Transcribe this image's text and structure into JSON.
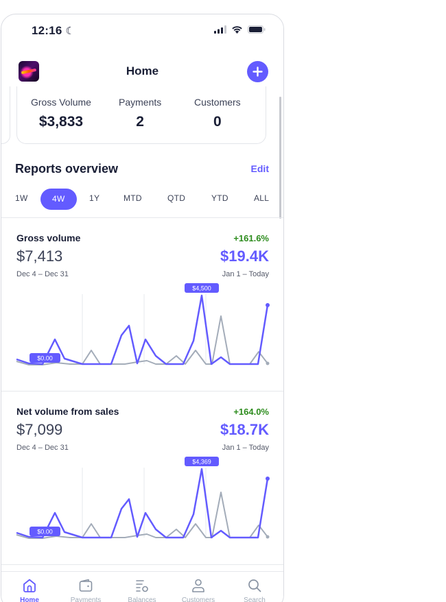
{
  "status_bar": {
    "time": "12:16"
  },
  "header": {
    "title": "Home"
  },
  "summary": [
    {
      "label": "Gross Volume",
      "value": "$3,833"
    },
    {
      "label": "Payments",
      "value": "2"
    },
    {
      "label": "Customers",
      "value": "0"
    }
  ],
  "reports": {
    "title": "Reports overview",
    "edit_label": "Edit",
    "ranges": [
      "1W",
      "4W",
      "1Y",
      "MTD",
      "QTD",
      "YTD",
      "ALL"
    ],
    "selected_range": "4W",
    "items": [
      {
        "name": "Gross volume",
        "change": "+161.6%",
        "previous_value": "$7,413",
        "current_value": "$19.4K",
        "previous_range": "Dec 4 – Dec 31",
        "current_range": "Jan 1 – Today",
        "min_label": "$0.00",
        "max_label": "$4,500"
      },
      {
        "name": "Net volume from sales",
        "change": "+164.0%",
        "previous_value": "$7,099",
        "current_value": "$18.7K",
        "previous_range": "Dec 4 – Dec 31",
        "current_range": "Jan 1 – Today",
        "min_label": "$0.00",
        "max_label": "$4,369"
      }
    ]
  },
  "tab_bar": [
    {
      "label": "Home",
      "icon": "home-icon",
      "active": true
    },
    {
      "label": "Payments",
      "icon": "wallet-icon",
      "active": false
    },
    {
      "label": "Balances",
      "icon": "balances-icon",
      "active": false
    },
    {
      "label": "Customers",
      "icon": "person-icon",
      "active": false
    },
    {
      "label": "Search",
      "icon": "search-icon",
      "active": false
    }
  ],
  "colors": {
    "accent": "#635bff",
    "positive": "#2d8c1d",
    "comparison_line": "#a3acb9"
  }
}
